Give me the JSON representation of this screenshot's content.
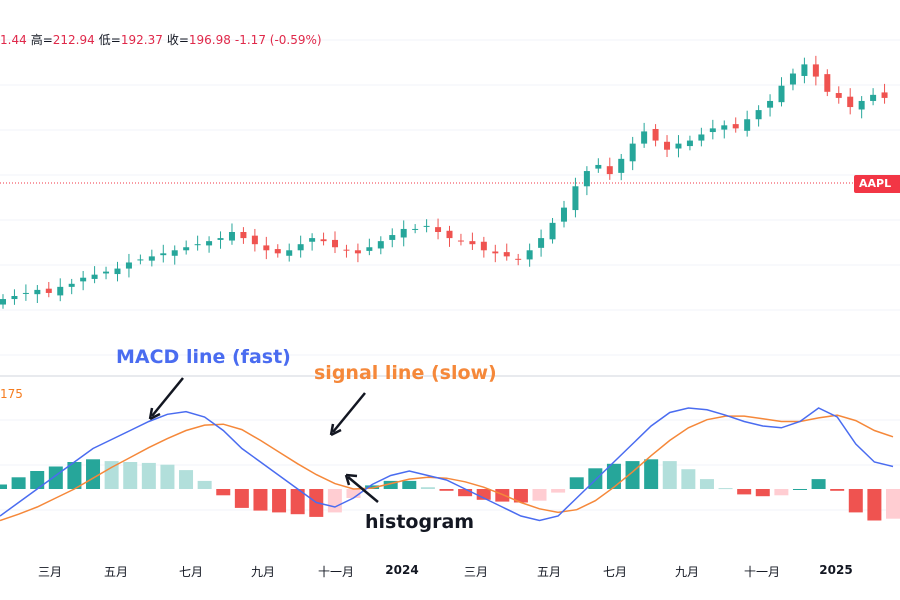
{
  "ohlc": {
    "open_label": "",
    "open_value": "1.44",
    "high_label": "高=",
    "high_value": "212.94",
    "low_label": "低=",
    "low_value": "192.37",
    "close_label": "收=",
    "close_value": "196.98",
    "change": "-1.17 (-0.59%)"
  },
  "symbol_tag": "AAPL",
  "macd_value": "175",
  "annotations": {
    "macd": "MACD line (fast)",
    "signal": "signal line (slow)",
    "histogram": "histogram"
  },
  "x_axis_labels": [
    {
      "text": "三月",
      "bold": false
    },
    {
      "text": "五月",
      "bold": false
    },
    {
      "text": "七月",
      "bold": false
    },
    {
      "text": "九月",
      "bold": false
    },
    {
      "text": "十一月",
      "bold": false
    },
    {
      "text": "2024",
      "bold": true
    },
    {
      "text": "三月",
      "bold": false
    },
    {
      "text": "五月",
      "bold": false
    },
    {
      "text": "七月",
      "bold": false
    },
    {
      "text": "九月",
      "bold": false
    },
    {
      "text": "十一月",
      "bold": false
    },
    {
      "text": "2025",
      "bold": true
    }
  ],
  "colors": {
    "up": "#26a69a",
    "down": "#ef5350",
    "up_light": "#b2dfdb",
    "down_light": "#ffcdd2",
    "macd_line": "#4a6cf0",
    "signal_line": "#f5883a",
    "price_line": "#f23645",
    "grid": "#f0f3fa"
  },
  "chart_data": {
    "type": "candlestick",
    "title": "",
    "panels": [
      "price",
      "macd"
    ],
    "price_series_close": [
      170,
      171,
      172,
      173,
      172,
      174,
      175,
      177,
      178,
      179,
      180,
      182,
      183,
      184,
      185,
      186,
      187,
      188,
      189,
      190,
      192,
      190,
      188,
      186,
      185,
      186,
      188,
      190,
      189,
      187,
      186,
      185,
      187,
      189,
      191,
      193,
      193,
      194,
      192,
      190,
      189,
      188,
      186,
      185,
      184,
      183,
      186,
      190,
      195,
      200,
      207,
      212,
      214,
      211,
      216,
      221,
      225,
      222,
      219,
      221,
      222,
      224,
      226,
      227,
      226,
      229,
      232,
      235,
      240,
      244,
      247,
      243,
      238,
      236,
      233,
      235,
      237,
      236
    ],
    "macd_series": [
      -3,
      -1.5,
      0,
      1.5,
      3,
      4.5,
      5.5,
      6.5,
      7.5,
      8.3,
      8.6,
      8,
      6.5,
      4.5,
      3,
      1.5,
      0,
      -1.5,
      -2,
      -1,
      0.5,
      1.5,
      2,
      1.5,
      1,
      0,
      -1,
      -2,
      -3,
      -3.5,
      -3,
      -1,
      1,
      3,
      5,
      7,
      8.5,
      9,
      8.8,
      8.2,
      7.5,
      7,
      6.8,
      7.5,
      9,
      8,
      5,
      3,
      2.5
    ],
    "signal_series": [
      -3.5,
      -2.8,
      -2,
      -1,
      0,
      1.2,
      2.4,
      3.5,
      4.6,
      5.6,
      6.5,
      7.1,
      7.2,
      6.6,
      5.4,
      4.1,
      2.8,
      1.6,
      0.6,
      0,
      0.1,
      0.6,
      1.1,
      1.3,
      1.2,
      0.8,
      0.2,
      -0.6,
      -1.5,
      -2.2,
      -2.6,
      -2.3,
      -1.3,
      0.2,
      1.9,
      3.7,
      5.4,
      6.8,
      7.7,
      8.1,
      8.1,
      7.8,
      7.5,
      7.5,
      7.9,
      8.2,
      7.6,
      6.5,
      5.8
    ],
    "histogram_values": [
      0.5,
      1.3,
      2,
      2.5,
      3,
      3.3,
      3.1,
      3,
      2.9,
      2.7,
      2.1,
      0.9,
      -0.7,
      -2.1,
      -2.4,
      -2.6,
      -2.8,
      -3.1,
      -2.6,
      -1,
      0.4,
      0.9,
      0.9,
      0.2,
      -0.2,
      -0.8,
      -1.2,
      -1.4,
      -1.5,
      -1.3,
      -0.4,
      1.3,
      2.3,
      2.8,
      3.1,
      3.3,
      3.1,
      2.2,
      1.1,
      0.1,
      -0.6,
      -0.8,
      -0.7,
      0,
      1.1,
      -0.2,
      -2.6,
      -3.5,
      -3.3
    ]
  }
}
